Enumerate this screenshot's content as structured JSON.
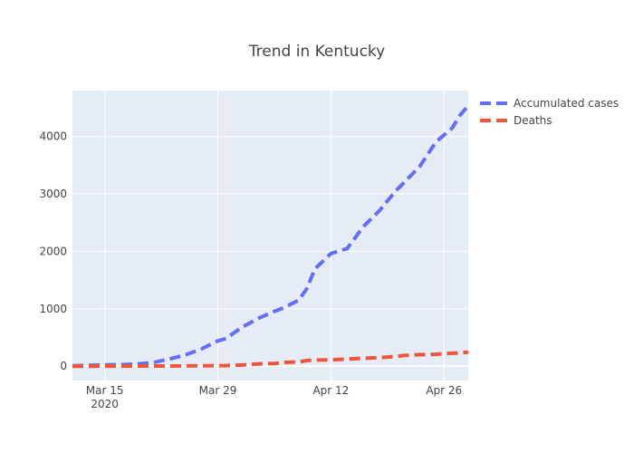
{
  "chart_data": {
    "type": "line",
    "title": "Trend in Kentucky",
    "xlabel": "",
    "ylabel": "",
    "x_start": "2020-03-11",
    "xlim": [
      "2020-03-11",
      "2020-04-29"
    ],
    "ylim": [
      -250,
      4800
    ],
    "x_ticks": [
      {
        "date": "2020-03-15",
        "label": "Mar 15",
        "sublabel": "2020"
      },
      {
        "date": "2020-03-29",
        "label": "Mar 29",
        "sublabel": ""
      },
      {
        "date": "2020-04-12",
        "label": "Apr 12",
        "sublabel": ""
      },
      {
        "date": "2020-04-26",
        "label": "Apr 26",
        "sublabel": ""
      }
    ],
    "y_ticks": [
      0,
      1000,
      2000,
      3000,
      4000
    ],
    "grid": true,
    "legend_position": "top-right",
    "dates": [
      "2020-03-11",
      "2020-03-13",
      "2020-03-15",
      "2020-03-17",
      "2020-03-19",
      "2020-03-21",
      "2020-03-23",
      "2020-03-25",
      "2020-03-27",
      "2020-03-29",
      "2020-03-30",
      "2020-04-01",
      "2020-04-03",
      "2020-04-05",
      "2020-04-06",
      "2020-04-08",
      "2020-04-09",
      "2020-04-10",
      "2020-04-12",
      "2020-04-14",
      "2020-04-16",
      "2020-04-18",
      "2020-04-20",
      "2020-04-21",
      "2020-04-23",
      "2020-04-25",
      "2020-04-27",
      "2020-04-28",
      "2020-04-29"
    ],
    "series": [
      {
        "name": "Accumulated cases",
        "color": "#636efa",
        "values": [
          8,
          14,
          21,
          26,
          37,
          63,
          124,
          198,
          302,
          439,
          480,
          680,
          831,
          955,
          1008,
          1149,
          1346,
          1693,
          1963,
          2048,
          2429,
          2707,
          3050,
          3192,
          3481,
          3905,
          4146,
          4375,
          4539
        ]
      },
      {
        "name": "Deaths",
        "color": "#ef553b",
        "values": [
          0,
          0,
          1,
          1,
          2,
          2,
          3,
          4,
          7,
          9,
          11,
          20,
          40,
          45,
          65,
          73,
          97,
          106,
          110,
          122,
          136,
          148,
          169,
          185,
          200,
          208,
          225,
          230,
          245
        ]
      }
    ]
  }
}
